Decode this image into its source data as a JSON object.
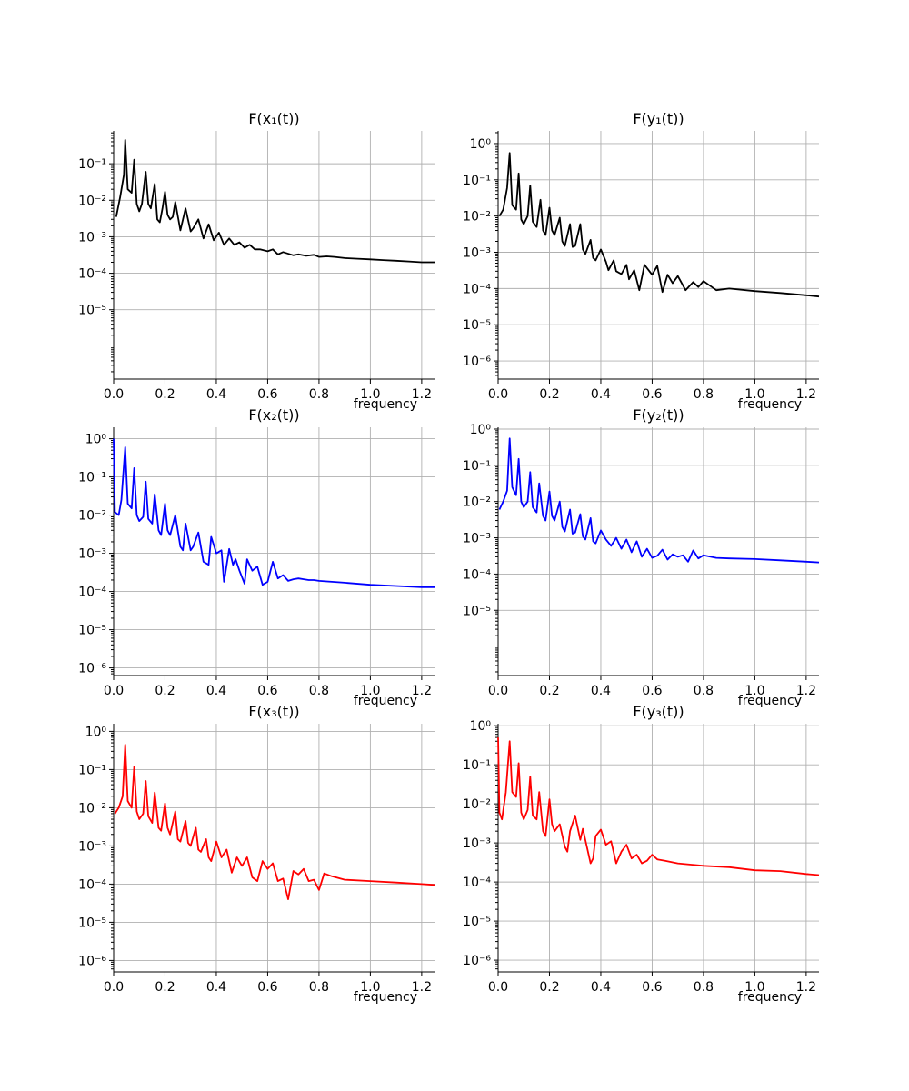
{
  "chart_data": [
    {
      "type": "line",
      "title": "F(x₁(t))",
      "xlabel": "frequency",
      "ylabel": "",
      "xlim": [
        0,
        1.25
      ],
      "ylog": true,
      "ylim_exp": [
        -6.9,
        -0.1
      ],
      "x_ticks": [
        "0.0",
        "0.2",
        "0.4",
        "0.6",
        "0.8",
        "1.0",
        "1.2"
      ],
      "y_ticks": [
        {
          "exp": -5,
          "label": "10⁻⁵"
        },
        {
          "exp": -4,
          "label": "10⁻⁴"
        },
        {
          "exp": -3,
          "label": "10⁻³"
        },
        {
          "exp": -2,
          "label": "10⁻²"
        },
        {
          "exp": -1,
          "label": "10⁻¹"
        }
      ],
      "grid": true,
      "color": "#000000",
      "series": [
        {
          "name": "F(x₁(t))",
          "x": [
            0.01,
            0.025,
            0.04,
            0.045,
            0.055,
            0.07,
            0.08,
            0.09,
            0.1,
            0.11,
            0.125,
            0.135,
            0.145,
            0.16,
            0.17,
            0.18,
            0.19,
            0.2,
            0.21,
            0.22,
            0.23,
            0.24,
            0.26,
            0.28,
            0.3,
            0.31,
            0.33,
            0.35,
            0.37,
            0.39,
            0.41,
            0.43,
            0.45,
            0.47,
            0.49,
            0.51,
            0.53,
            0.55,
            0.57,
            0.6,
            0.62,
            0.64,
            0.66,
            0.7,
            0.72,
            0.75,
            0.78,
            0.8,
            0.83,
            0.86,
            0.9,
            0.95,
            1.0,
            1.05,
            1.1,
            1.15,
            1.2,
            1.25
          ],
          "y": [
            0.0035,
            0.012,
            0.05,
            0.45,
            0.02,
            0.016,
            0.13,
            0.008,
            0.005,
            0.008,
            0.06,
            0.008,
            0.006,
            0.028,
            0.003,
            0.0025,
            0.006,
            0.017,
            0.004,
            0.003,
            0.0035,
            0.009,
            0.0015,
            0.006,
            0.0014,
            0.0017,
            0.003,
            0.0009,
            0.0022,
            0.0008,
            0.0013,
            0.0006,
            0.0009,
            0.0006,
            0.0007,
            0.0005,
            0.0006,
            0.00045,
            0.00045,
            0.0004,
            0.00045,
            0.00033,
            0.00038,
            0.00031,
            0.00033,
            0.0003,
            0.00032,
            0.00028,
            0.00029,
            0.00028,
            0.00026,
            0.00025,
            0.00024,
            0.00023,
            0.00022,
            0.00021,
            0.0002,
            0.0002
          ]
        }
      ]
    },
    {
      "type": "line",
      "title": "F(y₁(t))",
      "xlabel": "frequency",
      "ylabel": "",
      "xlim": [
        0,
        1.25
      ],
      "ylog": true,
      "ylim_exp": [
        -6.5,
        0.35
      ],
      "x_ticks": [
        "0.0",
        "0.2",
        "0.4",
        "0.6",
        "0.8",
        "1.0",
        "1.2"
      ],
      "y_ticks": [
        {
          "exp": -6,
          "label": "10⁻⁶"
        },
        {
          "exp": -5,
          "label": "10⁻⁵"
        },
        {
          "exp": -4,
          "label": "10⁻⁴"
        },
        {
          "exp": -3,
          "label": "10⁻³"
        },
        {
          "exp": -2,
          "label": "10⁻²"
        },
        {
          "exp": -1,
          "label": "10⁻¹"
        },
        {
          "exp": 0,
          "label": "10⁰"
        }
      ],
      "grid": true,
      "color": "#000000",
      "series": [
        {
          "name": "F(y₁(t))",
          "x": [
            0.005,
            0.02,
            0.035,
            0.045,
            0.055,
            0.07,
            0.08,
            0.09,
            0.1,
            0.115,
            0.125,
            0.135,
            0.15,
            0.165,
            0.175,
            0.185,
            0.2,
            0.21,
            0.22,
            0.24,
            0.25,
            0.26,
            0.28,
            0.29,
            0.3,
            0.32,
            0.33,
            0.34,
            0.36,
            0.37,
            0.38,
            0.4,
            0.42,
            0.43,
            0.45,
            0.46,
            0.48,
            0.5,
            0.51,
            0.53,
            0.55,
            0.57,
            0.6,
            0.62,
            0.64,
            0.66,
            0.68,
            0.7,
            0.73,
            0.76,
            0.78,
            0.8,
            0.85,
            0.9,
            1.0,
            1.1,
            1.2,
            1.25
          ],
          "y": [
            0.01,
            0.015,
            0.06,
            0.55,
            0.02,
            0.015,
            0.15,
            0.008,
            0.006,
            0.01,
            0.07,
            0.007,
            0.005,
            0.028,
            0.004,
            0.003,
            0.017,
            0.004,
            0.003,
            0.009,
            0.002,
            0.0015,
            0.006,
            0.0014,
            0.0015,
            0.006,
            0.0012,
            0.0009,
            0.0022,
            0.0007,
            0.0006,
            0.0012,
            0.00055,
            0.00032,
            0.0006,
            0.0003,
            0.00025,
            0.00045,
            0.00018,
            0.00032,
            9e-05,
            0.00045,
            0.00024,
            0.00042,
            8e-05,
            0.00024,
            0.00014,
            0.00022,
            9e-05,
            0.00015,
            0.00011,
            0.00016,
            9e-05,
            0.0001,
            8.5e-05,
            7.5e-05,
            6.5e-05,
            6e-05
          ]
        }
      ]
    },
    {
      "type": "line",
      "title": "F(x₂(t))",
      "xlabel": "frequency",
      "ylabel": "",
      "xlim": [
        0,
        1.25
      ],
      "ylog": true,
      "ylim_exp": [
        -6.2,
        0.3
      ],
      "x_ticks": [
        "0.0",
        "0.2",
        "0.4",
        "0.6",
        "0.8",
        "1.0",
        "1.2"
      ],
      "y_ticks": [
        {
          "exp": -6,
          "label": "10⁻⁶"
        },
        {
          "exp": -5,
          "label": "10⁻⁵"
        },
        {
          "exp": -4,
          "label": "10⁻⁴"
        },
        {
          "exp": -3,
          "label": "10⁻³"
        },
        {
          "exp": -2,
          "label": "10⁻²"
        },
        {
          "exp": -1,
          "label": "10⁻¹"
        },
        {
          "exp": 0,
          "label": "10⁰"
        }
      ],
      "grid": true,
      "color": "#0000ff",
      "series": [
        {
          "name": "F(x₂(t))",
          "x": [
            0.0,
            0.005,
            0.02,
            0.03,
            0.045,
            0.055,
            0.07,
            0.08,
            0.09,
            0.1,
            0.115,
            0.125,
            0.135,
            0.15,
            0.16,
            0.175,
            0.185,
            0.2,
            0.21,
            0.22,
            0.24,
            0.26,
            0.27,
            0.28,
            0.3,
            0.31,
            0.33,
            0.35,
            0.37,
            0.38,
            0.4,
            0.42,
            0.43,
            0.45,
            0.465,
            0.475,
            0.49,
            0.51,
            0.52,
            0.54,
            0.56,
            0.58,
            0.6,
            0.62,
            0.64,
            0.66,
            0.68,
            0.7,
            0.72,
            0.74,
            0.76,
            0.78,
            0.8,
            0.9,
            1.0,
            1.1,
            1.2,
            1.25
          ],
          "y": [
            1.0,
            0.012,
            0.01,
            0.025,
            0.6,
            0.02,
            0.015,
            0.17,
            0.01,
            0.007,
            0.009,
            0.075,
            0.008,
            0.006,
            0.035,
            0.004,
            0.003,
            0.02,
            0.004,
            0.003,
            0.01,
            0.0015,
            0.0012,
            0.006,
            0.0012,
            0.0015,
            0.0035,
            0.0006,
            0.0005,
            0.0027,
            0.001,
            0.0012,
            0.00018,
            0.0013,
            0.0005,
            0.0007,
            0.00035,
            0.00016,
            0.0007,
            0.00035,
            0.00045,
            0.00015,
            0.00018,
            0.0006,
            0.00022,
            0.00027,
            0.00019,
            0.00021,
            0.00022,
            0.00021,
            0.0002,
            0.0002,
            0.00019,
            0.00017,
            0.00015,
            0.00014,
            0.00013,
            0.00013
          ]
        }
      ]
    },
    {
      "type": "line",
      "title": "F(y₂(t))",
      "xlabel": "frequency",
      "ylabel": "",
      "xlim": [
        0,
        1.25
      ],
      "ylog": true,
      "ylim_exp": [
        -6.8,
        0.05
      ],
      "x_ticks": [
        "0.0",
        "0.2",
        "0.4",
        "0.6",
        "0.8",
        "1.0",
        "1.2"
      ],
      "y_ticks": [
        {
          "exp": -5,
          "label": "10⁻⁵"
        },
        {
          "exp": -4,
          "label": "10⁻⁴"
        },
        {
          "exp": -3,
          "label": "10⁻³"
        },
        {
          "exp": -2,
          "label": "10⁻²"
        },
        {
          "exp": -1,
          "label": "10⁻¹"
        },
        {
          "exp": 0,
          "label": "10⁰"
        }
      ],
      "grid": true,
      "color": "#0000ff",
      "series": [
        {
          "name": "F(y₂(t))",
          "x": [
            0.005,
            0.02,
            0.035,
            0.045,
            0.055,
            0.07,
            0.08,
            0.09,
            0.1,
            0.115,
            0.125,
            0.135,
            0.15,
            0.16,
            0.175,
            0.185,
            0.2,
            0.21,
            0.22,
            0.24,
            0.25,
            0.26,
            0.28,
            0.29,
            0.3,
            0.32,
            0.33,
            0.34,
            0.36,
            0.37,
            0.38,
            0.4,
            0.42,
            0.44,
            0.46,
            0.48,
            0.5,
            0.52,
            0.54,
            0.56,
            0.58,
            0.6,
            0.62,
            0.64,
            0.66,
            0.68,
            0.7,
            0.72,
            0.74,
            0.76,
            0.78,
            0.8,
            0.85,
            0.9,
            1.0,
            1.1,
            1.2,
            1.25
          ],
          "y": [
            0.006,
            0.01,
            0.02,
            0.55,
            0.025,
            0.015,
            0.15,
            0.01,
            0.007,
            0.01,
            0.065,
            0.007,
            0.005,
            0.032,
            0.004,
            0.003,
            0.019,
            0.004,
            0.003,
            0.01,
            0.002,
            0.0015,
            0.006,
            0.0013,
            0.0014,
            0.0045,
            0.0011,
            0.0009,
            0.0035,
            0.0008,
            0.0007,
            0.0016,
            0.0009,
            0.0006,
            0.001,
            0.0005,
            0.0009,
            0.0004,
            0.0008,
            0.0003,
            0.0005,
            0.00028,
            0.00032,
            0.00047,
            0.00025,
            0.00035,
            0.0003,
            0.00033,
            0.00022,
            0.00045,
            0.00027,
            0.00033,
            0.00028,
            0.00027,
            0.00026,
            0.00024,
            0.00022,
            0.00021
          ]
        }
      ]
    },
    {
      "type": "line",
      "title": "F(x₃(t))",
      "xlabel": "frequency",
      "ylabel": "",
      "xlim": [
        0,
        1.25
      ],
      "ylog": true,
      "ylim_exp": [
        -6.3,
        0.2
      ],
      "x_ticks": [
        "0.0",
        "0.2",
        "0.4",
        "0.6",
        "0.8",
        "1.0",
        "1.2"
      ],
      "y_ticks": [
        {
          "exp": -6,
          "label": "10⁻⁶"
        },
        {
          "exp": -5,
          "label": "10⁻⁵"
        },
        {
          "exp": -4,
          "label": "10⁻⁴"
        },
        {
          "exp": -3,
          "label": "10⁻³"
        },
        {
          "exp": -2,
          "label": "10⁻²"
        },
        {
          "exp": -1,
          "label": "10⁻¹"
        },
        {
          "exp": 0,
          "label": "10⁰"
        }
      ],
      "grid": true,
      "color": "#ff0000",
      "series": [
        {
          "name": "F(x₃(t))",
          "x": [
            0.005,
            0.02,
            0.035,
            0.045,
            0.055,
            0.07,
            0.08,
            0.09,
            0.1,
            0.115,
            0.125,
            0.135,
            0.15,
            0.16,
            0.175,
            0.185,
            0.2,
            0.21,
            0.22,
            0.24,
            0.25,
            0.26,
            0.28,
            0.29,
            0.3,
            0.32,
            0.33,
            0.34,
            0.36,
            0.37,
            0.38,
            0.4,
            0.42,
            0.44,
            0.46,
            0.48,
            0.5,
            0.52,
            0.54,
            0.56,
            0.58,
            0.6,
            0.62,
            0.64,
            0.66,
            0.68,
            0.7,
            0.72,
            0.74,
            0.76,
            0.78,
            0.8,
            0.82,
            0.85,
            0.9,
            1.0,
            1.1,
            1.2,
            1.25
          ],
          "y": [
            0.007,
            0.01,
            0.02,
            0.45,
            0.015,
            0.01,
            0.12,
            0.008,
            0.005,
            0.007,
            0.05,
            0.006,
            0.004,
            0.025,
            0.003,
            0.0025,
            0.013,
            0.003,
            0.002,
            0.008,
            0.0015,
            0.0013,
            0.0045,
            0.0012,
            0.001,
            0.003,
            0.0008,
            0.0007,
            0.0015,
            0.0005,
            0.0004,
            0.0013,
            0.0005,
            0.0008,
            0.0002,
            0.0005,
            0.0003,
            0.0005,
            0.00015,
            0.00012,
            0.0004,
            0.00025,
            0.00035,
            0.00012,
            0.00014,
            4e-05,
            0.00022,
            0.00018,
            0.00025,
            0.00012,
            0.00013,
            7e-05,
            0.00019,
            0.00016,
            0.00013,
            0.00012,
            0.00011,
            0.0001,
            9.5e-05
          ]
        }
      ]
    },
    {
      "type": "line",
      "title": "F(y₃(t))",
      "xlabel": "frequency",
      "ylabel": "",
      "xlim": [
        0,
        1.25
      ],
      "ylog": true,
      "ylim_exp": [
        -6.3,
        0.05
      ],
      "x_ticks": [
        "0.0",
        "0.2",
        "0.4",
        "0.6",
        "0.8",
        "1.0",
        "1.2"
      ],
      "y_ticks": [
        {
          "exp": -6,
          "label": "10⁻⁶"
        },
        {
          "exp": -5,
          "label": "10⁻⁵"
        },
        {
          "exp": -4,
          "label": "10⁻⁴"
        },
        {
          "exp": -3,
          "label": "10⁻³"
        },
        {
          "exp": -2,
          "label": "10⁻²"
        },
        {
          "exp": -1,
          "label": "10⁻¹"
        },
        {
          "exp": 0,
          "label": "10⁰"
        }
      ],
      "grid": true,
      "color": "#ff0000",
      "series": [
        {
          "name": "F(y₃(t))",
          "x": [
            0.0,
            0.005,
            0.015,
            0.03,
            0.045,
            0.055,
            0.07,
            0.08,
            0.09,
            0.1,
            0.115,
            0.125,
            0.135,
            0.15,
            0.16,
            0.175,
            0.185,
            0.2,
            0.21,
            0.22,
            0.24,
            0.26,
            0.27,
            0.28,
            0.3,
            0.32,
            0.33,
            0.36,
            0.37,
            0.38,
            0.4,
            0.42,
            0.44,
            0.46,
            0.48,
            0.5,
            0.52,
            0.54,
            0.56,
            0.58,
            0.6,
            0.62,
            0.65,
            0.7,
            0.8,
            0.9,
            1.0,
            1.1,
            1.2,
            1.25
          ],
          "y": [
            0.5,
            0.006,
            0.004,
            0.02,
            0.4,
            0.02,
            0.015,
            0.11,
            0.006,
            0.004,
            0.007,
            0.05,
            0.005,
            0.004,
            0.02,
            0.002,
            0.0015,
            0.013,
            0.003,
            0.002,
            0.003,
            0.0008,
            0.0006,
            0.002,
            0.005,
            0.0012,
            0.0023,
            0.0003,
            0.0004,
            0.0015,
            0.0022,
            0.0009,
            0.0011,
            0.0003,
            0.0006,
            0.0009,
            0.0004,
            0.0005,
            0.0003,
            0.00035,
            0.0005,
            0.00038,
            0.00035,
            0.0003,
            0.00026,
            0.00024,
            0.0002,
            0.00019,
            0.00016,
            0.00015
          ]
        }
      ]
    }
  ]
}
